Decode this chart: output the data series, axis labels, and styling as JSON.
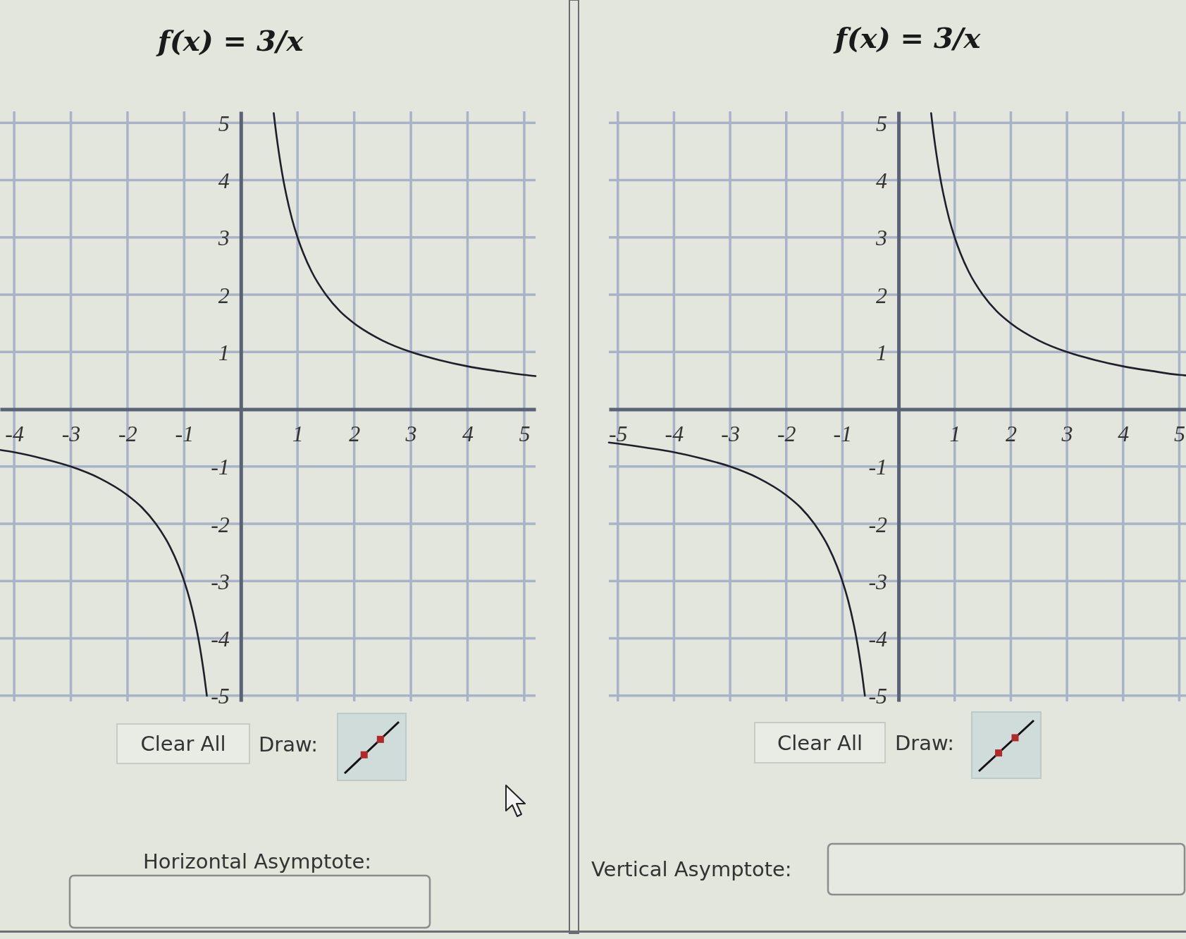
{
  "chart_data": [
    {
      "type": "line",
      "title": "f(x) = 3/x",
      "xlim": [
        -4.25,
        5.2
      ],
      "ylim": [
        -5.1,
        5.2
      ],
      "xticks": [
        -4,
        -3,
        -2,
        -1,
        1,
        2,
        3,
        4,
        5
      ],
      "yticks": [
        -5,
        -4,
        -3,
        -2,
        -1,
        1,
        2,
        3,
        4,
        5
      ],
      "grid": true,
      "series": [
        {
          "color": "#1f1f2a",
          "x": [
            -4.25,
            -4,
            -3.5,
            -3,
            -2.5,
            -2,
            -1.75,
            -1.5,
            -1.25,
            -1.1,
            -1,
            -0.9,
            -0.8,
            -0.75,
            -0.7,
            -0.65,
            -0.6
          ],
          "values": [
            -0.71,
            -0.75,
            -0.86,
            -1,
            -1.2,
            -1.5,
            -1.71,
            -2,
            -2.4,
            -2.73,
            -3,
            -3.33,
            -3.75,
            -4,
            -4.29,
            -4.62,
            -5
          ]
        },
        {
          "color": "#1f1f2a",
          "x": [
            0.58,
            0.6,
            0.65,
            0.7,
            0.75,
            0.8,
            0.9,
            1,
            1.1,
            1.25,
            1.5,
            1.75,
            2,
            2.5,
            3,
            3.5,
            4,
            4.5,
            5,
            5.2
          ],
          "values": [
            5.17,
            5,
            4.62,
            4.29,
            4,
            3.75,
            3.33,
            3,
            2.73,
            2.4,
            2,
            1.71,
            1.5,
            1.2,
            1,
            0.86,
            0.75,
            0.67,
            0.6,
            0.58
          ]
        }
      ],
      "annotations": [
        "Clear All",
        "Draw:",
        "Horizontal Asymptote:"
      ]
    },
    {
      "type": "line",
      "title": "f(x) = 3/x",
      "xlim": [
        -5.16,
        5.12
      ],
      "ylim": [
        -5.1,
        5.2
      ],
      "xticks": [
        -5,
        -4,
        -3,
        -2,
        -1,
        1,
        2,
        3,
        4,
        5
      ],
      "yticks": [
        -5,
        -4,
        -3,
        -2,
        -1,
        1,
        2,
        3,
        4,
        5
      ],
      "grid": true,
      "series": [
        {
          "color": "#1f1f2a",
          "x": [
            -5.16,
            -5,
            -4.5,
            -4,
            -3.5,
            -3,
            -2.5,
            -2,
            -1.75,
            -1.5,
            -1.25,
            -1.1,
            -1,
            -0.9,
            -0.8,
            -0.75,
            -0.7,
            -0.65,
            -0.6
          ],
          "values": [
            -0.58,
            -0.6,
            -0.67,
            -0.75,
            -0.86,
            -1,
            -1.2,
            -1.5,
            -1.71,
            -2,
            -2.4,
            -2.73,
            -3,
            -3.33,
            -3.75,
            -4,
            -4.29,
            -4.62,
            -5
          ]
        },
        {
          "color": "#1f1f2a",
          "x": [
            0.58,
            0.6,
            0.65,
            0.7,
            0.75,
            0.8,
            0.9,
            1,
            1.1,
            1.25,
            1.5,
            1.75,
            2,
            2.5,
            3,
            3.5,
            4,
            4.5,
            5,
            5.12
          ],
          "values": [
            5.17,
            5,
            4.62,
            4.29,
            4,
            3.75,
            3.33,
            3,
            2.73,
            2.4,
            2,
            1.71,
            1.5,
            1.2,
            1,
            0.86,
            0.75,
            0.67,
            0.6,
            0.59
          ]
        }
      ],
      "annotations": [
        "Clear All",
        "Draw:",
        "Vertical Asymptote:"
      ]
    }
  ]
}
